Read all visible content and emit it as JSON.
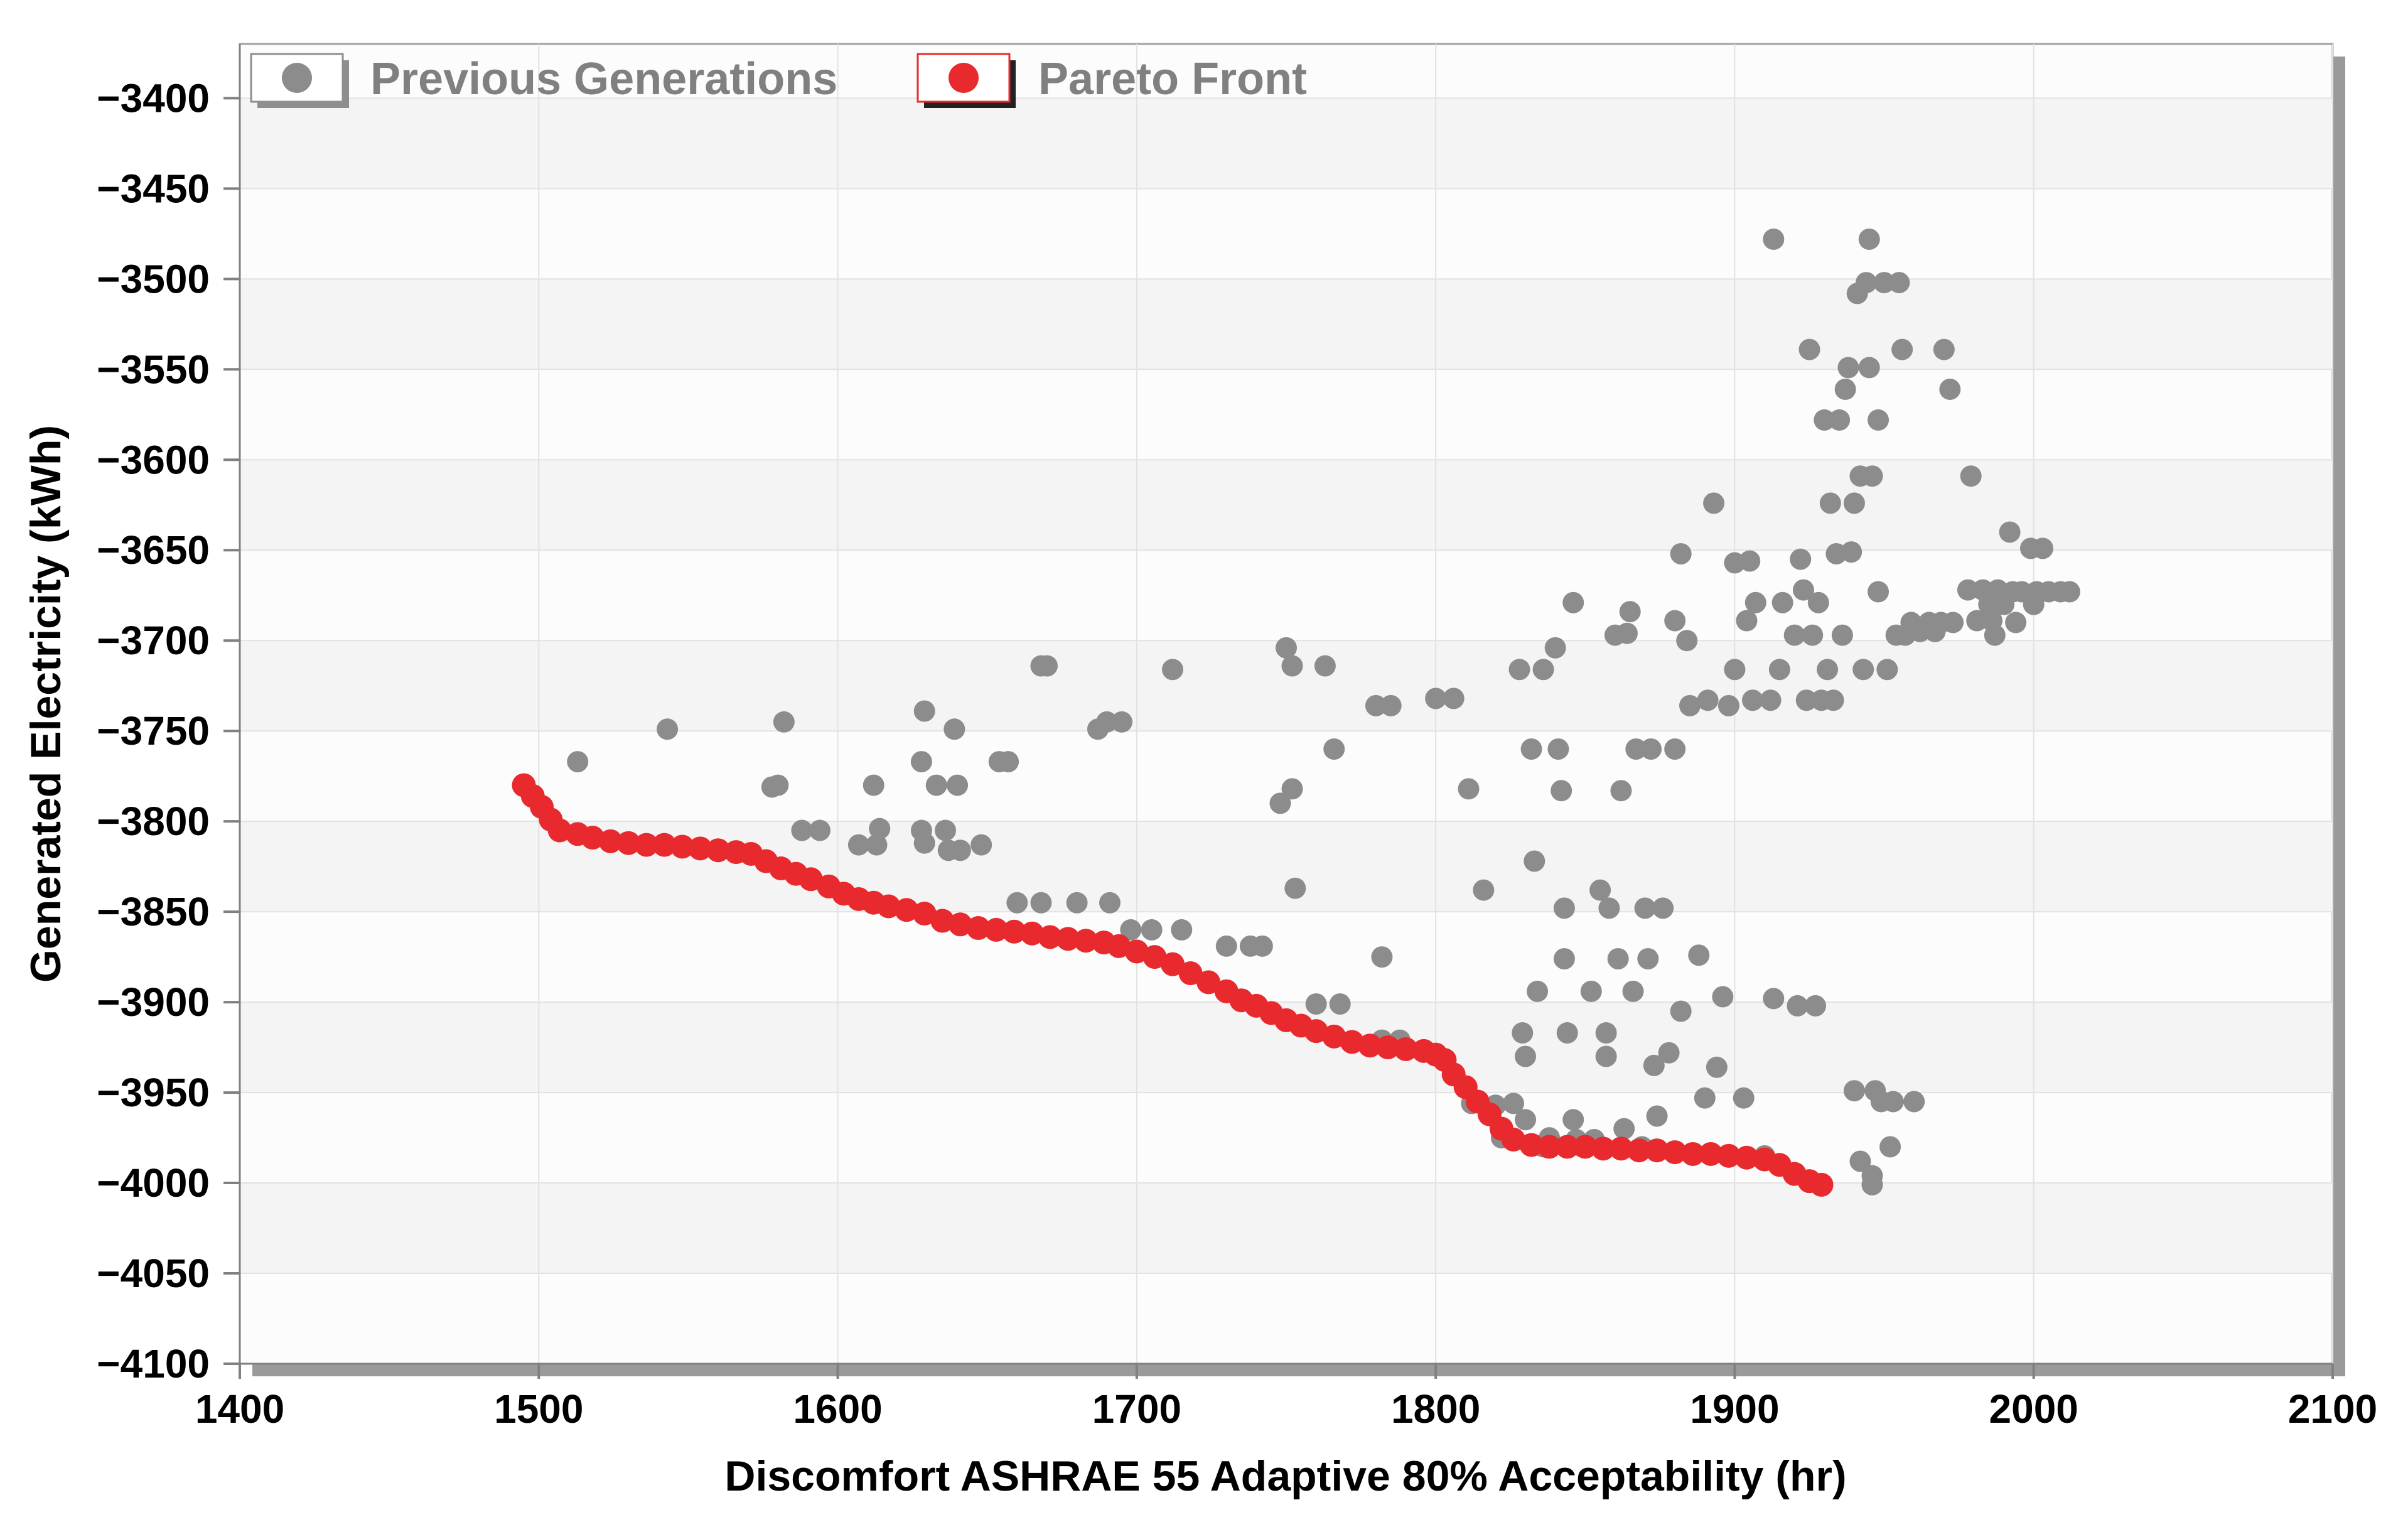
{
  "chart_data": {
    "type": "scatter",
    "xlabel": "Discomfort ASHRAE 55 Adaptive 80% Acceptability (hr)",
    "ylabel": "Generated Electricity (kWh)",
    "xlim": [
      1400,
      2100
    ],
    "ylim": [
      -4100,
      -3370
    ],
    "x_ticks": [
      1400,
      1500,
      1600,
      1700,
      1800,
      1900,
      2000,
      2100
    ],
    "y_ticks": [
      -3400,
      -3450,
      -3500,
      -3550,
      -3600,
      -3650,
      -3700,
      -3750,
      -3800,
      -3850,
      -3900,
      -3950,
      -4000,
      -4050,
      -4100
    ],
    "x_tick_labels": [
      "1400",
      "1500",
      "1600",
      "1700",
      "1800",
      "1900",
      "2000",
      "2100"
    ],
    "y_tick_labels": [
      "−3400",
      "−3450",
      "−3500",
      "−3550",
      "−3600",
      "−3650",
      "−3700",
      "−3750",
      "−3800",
      "−3850",
      "−3900",
      "−3950",
      "−4000",
      "−4050",
      "−4100"
    ],
    "grid": true,
    "legend_position": "top-left",
    "series": [
      {
        "name": "Previous Generations",
        "color": "#8c8c8c",
        "marker": "circle",
        "points": [
          [
            1495,
            -3780
          ],
          [
            1513,
            -3767
          ],
          [
            1543,
            -3749
          ],
          [
            1582,
            -3745
          ],
          [
            1580,
            -3780
          ],
          [
            1578,
            -3781
          ],
          [
            1588,
            -3805
          ],
          [
            1594,
            -3805
          ],
          [
            1607,
            -3813
          ],
          [
            1612,
            -3780
          ],
          [
            1614,
            -3804
          ],
          [
            1613,
            -3813
          ],
          [
            1628,
            -3767
          ],
          [
            1629,
            -3739
          ],
          [
            1628,
            -3805
          ],
          [
            1629,
            -3812
          ],
          [
            1633,
            -3780
          ],
          [
            1636,
            -3805
          ],
          [
            1637,
            -3816
          ],
          [
            1639,
            -3749
          ],
          [
            1640,
            -3780
          ],
          [
            1641,
            -3816
          ],
          [
            1648,
            -3813
          ],
          [
            1654,
            -3767
          ],
          [
            1657,
            -3767
          ],
          [
            1660,
            -3845
          ],
          [
            1668,
            -3845
          ],
          [
            1668,
            -3714
          ],
          [
            1670,
            -3714
          ],
          [
            1680,
            -3845
          ],
          [
            1687,
            -3749
          ],
          [
            1690,
            -3745
          ],
          [
            1691,
            -3845
          ],
          [
            1695,
            -3745
          ],
          [
            1698,
            -3860
          ],
          [
            1705,
            -3860
          ],
          [
            1712,
            -3716
          ],
          [
            1715,
            -3860
          ],
          [
            1730,
            -3869
          ],
          [
            1738,
            -3869
          ],
          [
            1742,
            -3869
          ],
          [
            1748,
            -3790
          ],
          [
            1750,
            -3704
          ],
          [
            1752,
            -3782
          ],
          [
            1753,
            -3837
          ],
          [
            1752,
            -3714
          ],
          [
            1763,
            -3714
          ],
          [
            1766,
            -3760
          ],
          [
            1760,
            -3901
          ],
          [
            1768,
            -3901
          ],
          [
            1782,
            -3875
          ],
          [
            1780,
            -3736
          ],
          [
            1785,
            -3736
          ],
          [
            1782,
            -3921
          ],
          [
            1788,
            -3921
          ],
          [
            1800,
            -3732
          ],
          [
            1806,
            -3732
          ],
          [
            1811,
            -3782
          ],
          [
            1812,
            -3956
          ],
          [
            1816,
            -3838
          ],
          [
            1820,
            -3957
          ],
          [
            1822,
            -3975
          ],
          [
            1826,
            -3956
          ],
          [
            1828,
            -3716
          ],
          [
            1829,
            -3917
          ],
          [
            1830,
            -3930
          ],
          [
            1830,
            -3965
          ],
          [
            1832,
            -3760
          ],
          [
            1833,
            -3822
          ],
          [
            1834,
            -3894
          ],
          [
            1836,
            -3716
          ],
          [
            1836,
            -3980
          ],
          [
            1838,
            -3975
          ],
          [
            1840,
            -3704
          ],
          [
            1841,
            -3760
          ],
          [
            1842,
            -3783
          ],
          [
            1843,
            -3848
          ],
          [
            1843,
            -3876
          ],
          [
            1844,
            -3917
          ],
          [
            1846,
            -3679
          ],
          [
            1846,
            -3965
          ],
          [
            1847,
            -3976
          ],
          [
            1849,
            -3980
          ],
          [
            1850,
            -3980
          ],
          [
            1852,
            -3894
          ],
          [
            1853,
            -3976
          ],
          [
            1855,
            -3838
          ],
          [
            1857,
            -3917
          ],
          [
            1857,
            -3930
          ],
          [
            1858,
            -3848
          ],
          [
            1860,
            -3697
          ],
          [
            1861,
            -3876
          ],
          [
            1862,
            -3783
          ],
          [
            1863,
            -3970
          ],
          [
            1864,
            -3696
          ],
          [
            1865,
            -3684
          ],
          [
            1866,
            -3894
          ],
          [
            1867,
            -3760
          ],
          [
            1869,
            -3980
          ],
          [
            1870,
            -3848
          ],
          [
            1871,
            -3876
          ],
          [
            1872,
            -3760
          ],
          [
            1873,
            -3935
          ],
          [
            1874,
            -3963
          ],
          [
            1876,
            -3848
          ],
          [
            1878,
            -3928
          ],
          [
            1880,
            -3760
          ],
          [
            1880,
            -3689
          ],
          [
            1882,
            -3905
          ],
          [
            1882,
            -3652
          ],
          [
            1884,
            -3700
          ],
          [
            1885,
            -3736
          ],
          [
            1888,
            -3874
          ],
          [
            1890,
            -3953
          ],
          [
            1891,
            -3733
          ],
          [
            1893,
            -3624
          ],
          [
            1894,
            -3936
          ],
          [
            1896,
            -3897
          ],
          [
            1898,
            -3736
          ],
          [
            1900,
            -3716
          ],
          [
            1900,
            -3657
          ],
          [
            1903,
            -3953
          ],
          [
            1904,
            -3689
          ],
          [
            1905,
            -3656
          ],
          [
            1906,
            -3733
          ],
          [
            1907,
            -3679
          ],
          [
            1910,
            -3985
          ],
          [
            1913,
            -3478
          ],
          [
            1912,
            -3733
          ],
          [
            1913,
            -3898
          ],
          [
            1915,
            -3716
          ],
          [
            1916,
            -3679
          ],
          [
            1920,
            -3697
          ],
          [
            1921,
            -3902
          ],
          [
            1922,
            -3655
          ],
          [
            1923,
            -3672
          ],
          [
            1924,
            -3733
          ],
          [
            1925,
            -3539
          ],
          [
            1926,
            -3697
          ],
          [
            1927,
            -3902
          ],
          [
            1928,
            -3679
          ],
          [
            1929,
            -3733
          ],
          [
            1930,
            -3578
          ],
          [
            1931,
            -3716
          ],
          [
            1932,
            -3624
          ],
          [
            1933,
            -3733
          ],
          [
            1934,
            -3652
          ],
          [
            1935,
            -3578
          ],
          [
            1936,
            -3697
          ],
          [
            1937,
            -3561
          ],
          [
            1938,
            -3549
          ],
          [
            1939,
            -3651
          ],
          [
            1940,
            -3624
          ],
          [
            1940,
            -3949
          ],
          [
            1941,
            -3508
          ],
          [
            1942,
            -3609
          ],
          [
            1942,
            -3988
          ],
          [
            1943,
            -3716
          ],
          [
            1944,
            -3502
          ],
          [
            1945,
            -3549
          ],
          [
            1945,
            -3478
          ],
          [
            1946,
            -3609
          ],
          [
            1946,
            -3996
          ],
          [
            1946,
            -4001
          ],
          [
            1947,
            -3949
          ],
          [
            1948,
            -3578
          ],
          [
            1948,
            -3673
          ],
          [
            1949,
            -3955
          ],
          [
            1950,
            -3502
          ],
          [
            1951,
            -3716
          ],
          [
            1952,
            -3980
          ],
          [
            1953,
            -3955
          ],
          [
            1954,
            -3697
          ],
          [
            1955,
            -3502
          ],
          [
            1956,
            -3539
          ],
          [
            1957,
            -3697
          ],
          [
            1959,
            -3690
          ],
          [
            1960,
            -3955
          ],
          [
            1962,
            -3695
          ],
          [
            1965,
            -3690
          ],
          [
            1967,
            -3695
          ],
          [
            1969,
            -3690
          ],
          [
            1970,
            -3539
          ],
          [
            1972,
            -3561
          ],
          [
            1973,
            -3690
          ],
          [
            1978,
            -3672
          ],
          [
            1979,
            -3609
          ],
          [
            1981,
            -3689
          ],
          [
            1983,
            -3672
          ],
          [
            1985,
            -3680
          ],
          [
            1986,
            -3689
          ],
          [
            1987,
            -3697
          ],
          [
            1988,
            -3672
          ],
          [
            1990,
            -3680
          ],
          [
            1992,
            -3640
          ],
          [
            1993,
            -3673
          ],
          [
            1994,
            -3690
          ],
          [
            1996,
            -3673
          ],
          [
            1999,
            -3649
          ],
          [
            2000,
            -3680
          ],
          [
            2001,
            -3673
          ],
          [
            2003,
            -3649
          ],
          [
            2005,
            -3673
          ],
          [
            2009,
            -3673
          ],
          [
            2012,
            -3673
          ]
        ]
      },
      {
        "name": "Pareto Front",
        "color": "#e8292d",
        "marker": "circle",
        "points": [
          [
            1495,
            -3780
          ],
          [
            1498,
            -3786
          ],
          [
            1501,
            -3792
          ],
          [
            1504,
            -3799
          ],
          [
            1507,
            -3805
          ],
          [
            1513,
            -3807
          ],
          [
            1518,
            -3809
          ],
          [
            1524,
            -3811
          ],
          [
            1530,
            -3812
          ],
          [
            1536,
            -3813
          ],
          [
            1542,
            -3813
          ],
          [
            1548,
            -3814
          ],
          [
            1554,
            -3815
          ],
          [
            1560,
            -3816
          ],
          [
            1566,
            -3817
          ],
          [
            1571,
            -3818
          ],
          [
            1576,
            -3822
          ],
          [
            1581,
            -3826
          ],
          [
            1586,
            -3829
          ],
          [
            1591,
            -3832
          ],
          [
            1597,
            -3836
          ],
          [
            1602,
            -3840
          ],
          [
            1607,
            -3843
          ],
          [
            1612,
            -3845
          ],
          [
            1617,
            -3847
          ],
          [
            1623,
            -3849
          ],
          [
            1629,
            -3851
          ],
          [
            1635,
            -3855
          ],
          [
            1641,
            -3857
          ],
          [
            1647,
            -3859
          ],
          [
            1653,
            -3860
          ],
          [
            1659,
            -3861
          ],
          [
            1665,
            -3862
          ],
          [
            1671,
            -3864
          ],
          [
            1677,
            -3865
          ],
          [
            1683,
            -3866
          ],
          [
            1689,
            -3867
          ],
          [
            1694,
            -3869
          ],
          [
            1700,
            -3872
          ],
          [
            1706,
            -3875
          ],
          [
            1712,
            -3879
          ],
          [
            1718,
            -3884
          ],
          [
            1724,
            -3889
          ],
          [
            1730,
            -3894
          ],
          [
            1735,
            -3899
          ],
          [
            1740,
            -3902
          ],
          [
            1745,
            -3906
          ],
          [
            1750,
            -3910
          ],
          [
            1755,
            -3913
          ],
          [
            1760,
            -3916
          ],
          [
            1766,
            -3919
          ],
          [
            1772,
            -3922
          ],
          [
            1778,
            -3924
          ],
          [
            1784,
            -3925
          ],
          [
            1790,
            -3926
          ],
          [
            1796,
            -3927
          ],
          [
            1800,
            -3929
          ],
          [
            1803,
            -3932
          ],
          [
            1806,
            -3940
          ],
          [
            1810,
            -3947
          ],
          [
            1814,
            -3955
          ],
          [
            1818,
            -3962
          ],
          [
            1822,
            -3970
          ],
          [
            1826,
            -3976
          ],
          [
            1832,
            -3979
          ],
          [
            1838,
            -3980
          ],
          [
            1844,
            -3980
          ],
          [
            1850,
            -3980
          ],
          [
            1856,
            -3981
          ],
          [
            1862,
            -3981
          ],
          [
            1868,
            -3982
          ],
          [
            1874,
            -3982
          ],
          [
            1880,
            -3983
          ],
          [
            1886,
            -3984
          ],
          [
            1892,
            -3984
          ],
          [
            1898,
            -3985
          ],
          [
            1904,
            -3986
          ],
          [
            1910,
            -3987
          ],
          [
            1915,
            -3990
          ],
          [
            1920,
            -3995
          ],
          [
            1925,
            -3999
          ],
          [
            1929,
            -4001
          ]
        ]
      }
    ]
  }
}
